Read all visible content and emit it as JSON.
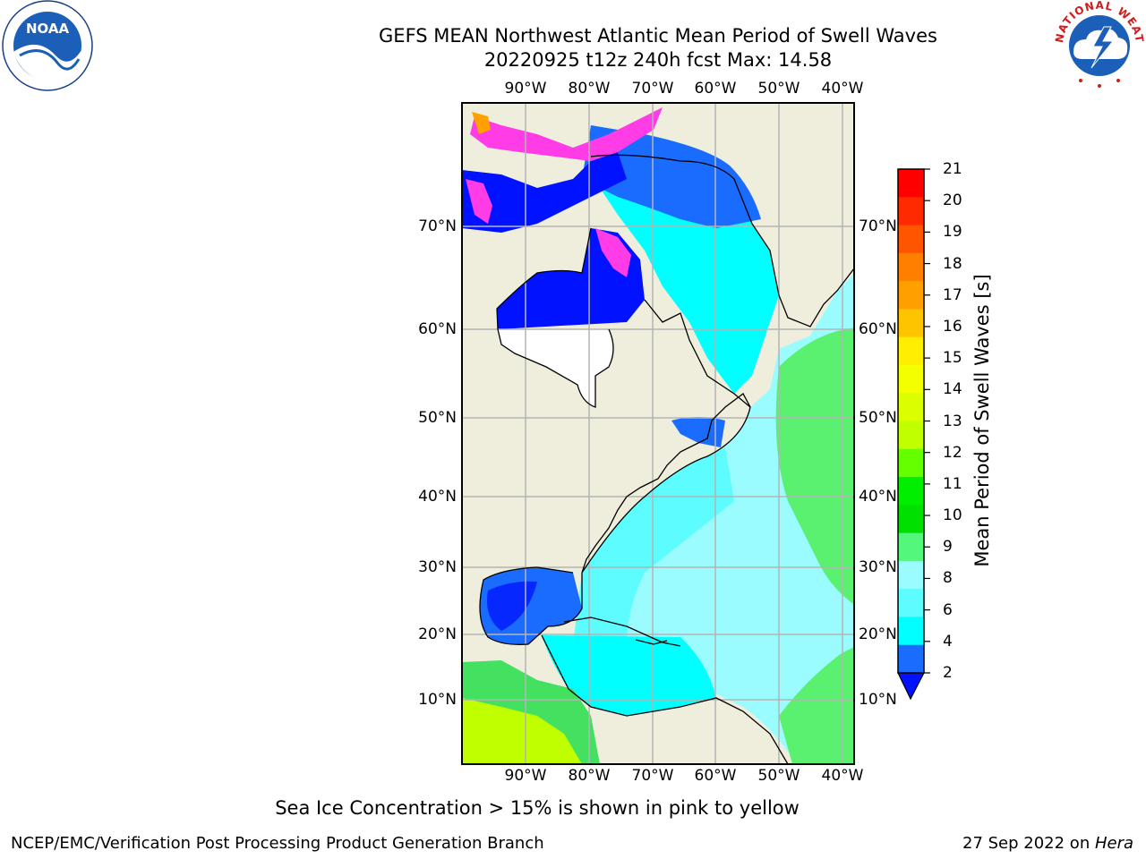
{
  "title": {
    "line1": "GEFS MEAN Northwest Atlantic Mean Period of Swell Waves",
    "line2": "20220925 t12z 240h fcst   Max: 14.58"
  },
  "logos": {
    "left_icon": "noaa-logo",
    "left_text": "NOAA",
    "right_icon": "nws-logo",
    "right_text": "NATIONAL WEATHER SERVICE"
  },
  "map": {
    "lon_labels": [
      "90°W",
      "80°W",
      "70°W",
      "60°W",
      "50°W",
      "40°W"
    ],
    "lat_labels": [
      "70°N",
      "60°N",
      "50°N",
      "40°N",
      "30°N",
      "20°N",
      "10°N"
    ],
    "colors": {
      "land": "#efeedc",
      "below_2": "#0012ff",
      "2_4": "#1a6cff",
      "4_6": "#00ffff",
      "6_8": "#5cfcff",
      "8_9": "#9bfcff",
      "9_10": "#5af070",
      "sea_ice": "#ff3ce6"
    }
  },
  "colorbar": {
    "label": "Mean Period of Swell Waves [s]",
    "ticks": [
      "21",
      "20",
      "19",
      "18",
      "17",
      "16",
      "15",
      "14",
      "13",
      "12",
      "11",
      "10",
      "9",
      "8",
      "6",
      "4",
      "2"
    ],
    "colors": [
      "#ff0000",
      "#ff2a00",
      "#ff5500",
      "#ff7f00",
      "#ffa000",
      "#ffc400",
      "#ffee00",
      "#f4ff00",
      "#dcff00",
      "#c0ff00",
      "#66ff00",
      "#00ee00",
      "#00e000",
      "#52f77c",
      "#9bfcff",
      "#5cfcff",
      "#00ffff",
      "#1a6cff"
    ],
    "extend_color": "#0012ff"
  },
  "footnote": "Sea Ice Concentration > 15% is shown in pink to yellow",
  "credit_left": "NCEP/EMC/Verification Post Processing Product Generation Branch",
  "credit_date": "27 Sep 2022 on ",
  "credit_host": "Hera"
}
